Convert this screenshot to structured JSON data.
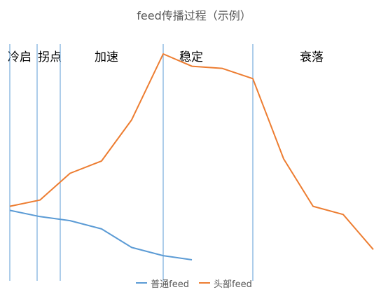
{
  "chart_data": {
    "type": "line",
    "title": "feed传播过程（示例）",
    "xlabel": "",
    "ylabel": "",
    "x": [
      0,
      1,
      2,
      3,
      4,
      5,
      6,
      7,
      8,
      9,
      10,
      11,
      12
    ],
    "ylim": [
      0,
      100
    ],
    "grid": false,
    "legend": "bottom",
    "phases": [
      {
        "label": "冷启",
        "start": 0,
        "end": 1
      },
      {
        "label": "拐点",
        "start": 1,
        "end": 2
      },
      {
        "label": "加速",
        "start": 2,
        "end": 5
      },
      {
        "label": "稳定",
        "start": 5,
        "end": 8
      },
      {
        "label": "衰落",
        "start": 8,
        "end": 12
      }
    ],
    "boundaries": [
      0,
      1,
      2,
      5,
      8,
      12
    ],
    "series": [
      {
        "name": "普通feed",
        "color": "#5b9bd5",
        "values": [
          24,
          21,
          19,
          15,
          6,
          2,
          0,
          null,
          null,
          null,
          null,
          null,
          null
        ]
      },
      {
        "name": "头部feed",
        "color": "#ed7d31",
        "values": [
          26,
          29,
          42,
          48,
          68,
          100,
          94,
          93,
          88,
          49,
          26,
          22,
          5
        ]
      }
    ]
  }
}
